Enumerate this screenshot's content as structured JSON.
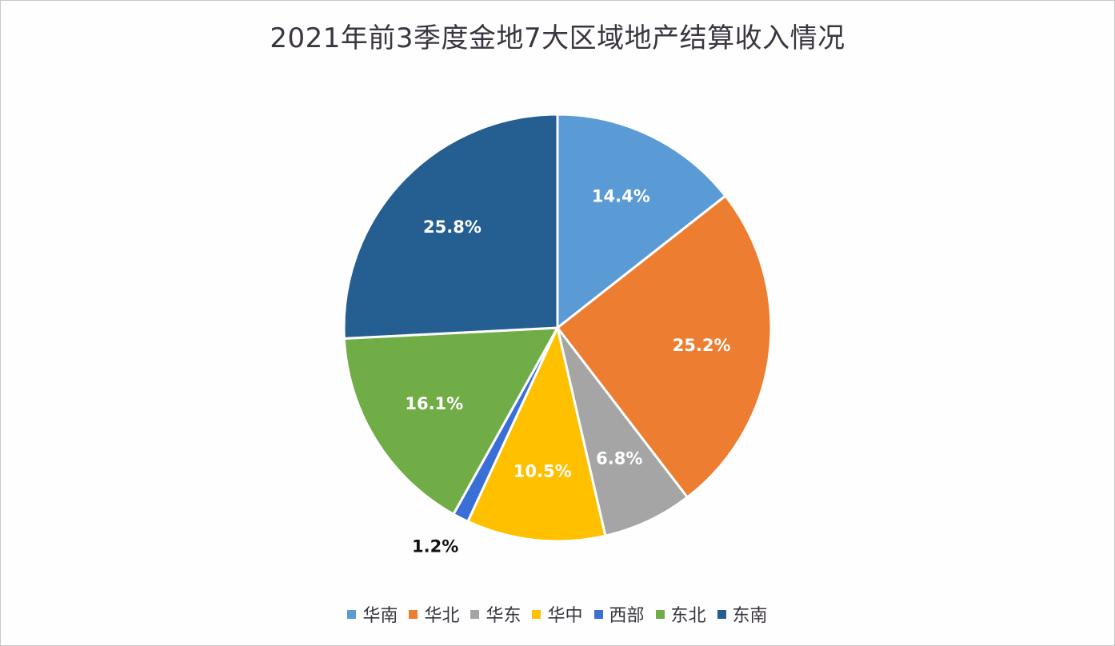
{
  "chart_data": {
    "type": "pie",
    "title": "2021年前3季度金地7大区域地产结算收入情况",
    "categories": [
      "华南",
      "华北",
      "华东",
      "华中",
      "西部",
      "东北",
      "东南"
    ],
    "values": [
      14.4,
      25.2,
      6.8,
      10.5,
      1.2,
      16.1,
      25.8
    ],
    "labels": [
      "14.4%",
      "25.2%",
      "6.8%",
      "10.5%",
      "1.2%",
      "16.1%",
      "25.8%"
    ],
    "colors": [
      "#5b9bd5",
      "#ed7d31",
      "#a5a5a5",
      "#ffc000",
      "#3a6fd8",
      "#70ad47",
      "#255e91"
    ],
    "unit": "%",
    "start_angle": "12 o'clock, clockwise",
    "legend_position": "bottom"
  },
  "title": "2021年前3季度金地7大区域地产结算收入情况",
  "legend": [
    {
      "label": "华南",
      "color": "#5b9bd5"
    },
    {
      "label": "华北",
      "color": "#ed7d31"
    },
    {
      "label": "华东",
      "color": "#a5a5a5"
    },
    {
      "label": "华中",
      "color": "#ffc000"
    },
    {
      "label": "西部",
      "color": "#3a6fd8"
    },
    {
      "label": "东北",
      "color": "#70ad47"
    },
    {
      "label": "东南",
      "color": "#255e91"
    }
  ]
}
